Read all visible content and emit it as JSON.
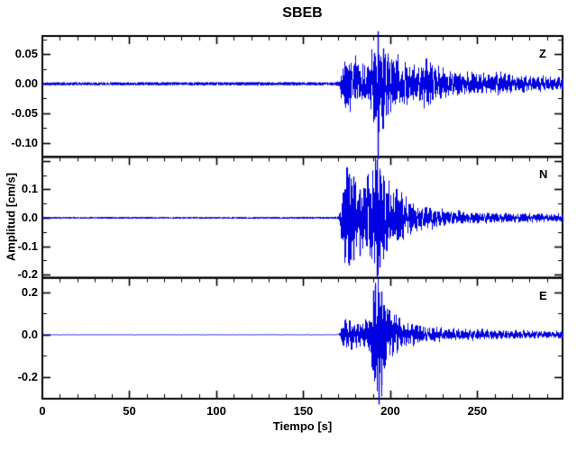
{
  "chart_data": {
    "type": "line",
    "title": "SBEB",
    "xlabel": "Tiempo [s]",
    "ylabel": "Amplitud [cm/s]",
    "background_color": "#ffffff",
    "axis_color": "#000000",
    "trace_color": "#0000e0",
    "grid": false,
    "legend": "none",
    "xlim": [
      0,
      299
    ],
    "xticks": {
      "major_step": 50,
      "minor_step": 10,
      "labels": [
        {
          "t": 0,
          "label": "0"
        },
        {
          "t": 50,
          "label": "50"
        },
        {
          "t": 100,
          "label": "100"
        },
        {
          "t": 150,
          "label": "150"
        },
        {
          "t": 200,
          "label": "200"
        },
        {
          "t": 250,
          "label": "250"
        }
      ]
    },
    "event_onset_s": 171.2,
    "panels": [
      {
        "label": "Z",
        "seed": 11,
        "ylim": [
          -0.124,
          0.081
        ],
        "ytick_major_step": 0.05,
        "ytick_minor_step": 0.025,
        "yticks": [
          {
            "v": 0.05,
            "label": "0.05"
          },
          {
            "v": 0.0,
            "label": "0.00"
          },
          {
            "v": -0.05,
            "label": "-0.05"
          },
          {
            "v": -0.1,
            "label": "-0.10"
          }
        ],
        "envelope": [
          [
            0,
            0.0038
          ],
          [
            150,
            0.0042
          ],
          [
            168,
            0.004
          ],
          [
            170.5,
            0.006
          ],
          [
            171.5,
            0.018
          ],
          [
            172.5,
            0.03
          ],
          [
            174,
            0.034
          ],
          [
            176,
            0.038
          ],
          [
            178,
            0.03
          ],
          [
            180,
            0.033
          ],
          [
            182,
            0.028
          ],
          [
            184,
            0.031
          ],
          [
            186,
            0.033
          ],
          [
            188,
            0.042
          ],
          [
            190,
            0.05
          ],
          [
            192,
            0.058
          ],
          [
            193,
            0.062
          ],
          [
            194,
            0.05
          ],
          [
            195.5,
            0.055
          ],
          [
            197,
            0.046
          ],
          [
            199,
            0.04
          ],
          [
            201,
            0.036
          ],
          [
            203,
            0.04
          ],
          [
            206,
            0.037
          ],
          [
            209,
            0.032
          ],
          [
            212,
            0.028
          ],
          [
            215,
            0.032
          ],
          [
            218,
            0.03
          ],
          [
            221,
            0.042
          ],
          [
            223,
            0.045
          ],
          [
            225,
            0.034
          ],
          [
            228,
            0.026
          ],
          [
            231,
            0.022
          ],
          [
            234,
            0.019
          ],
          [
            237,
            0.022
          ],
          [
            240,
            0.02
          ],
          [
            244,
            0.017
          ],
          [
            248,
            0.02
          ],
          [
            252,
            0.016
          ],
          [
            256,
            0.014
          ],
          [
            260,
            0.018
          ],
          [
            264,
            0.021
          ],
          [
            268,
            0.016
          ],
          [
            272,
            0.012
          ],
          [
            276,
            0.014
          ],
          [
            280,
            0.013
          ],
          [
            284,
            0.011
          ],
          [
            288,
            0.013
          ],
          [
            293,
            0.011
          ],
          [
            299,
            0.012
          ]
        ],
        "spikes": [
          {
            "t": 192.9,
            "up": 0.089,
            "down": -0.128
          },
          {
            "t": 190.7,
            "up": 0.052,
            "down": -0.06
          },
          {
            "t": 195.9,
            "up": 0.06,
            "down": -0.048
          },
          {
            "t": 198.3,
            "up": 0.045,
            "down": -0.052
          }
        ]
      },
      {
        "label": "N",
        "seed": 23,
        "ylim": [
          -0.2114,
          0.2146
        ],
        "ytick_major_step": 0.1,
        "ytick_minor_step": 0.05,
        "yticks": [
          {
            "v": 0.1,
            "label": "0.1"
          },
          {
            "v": 0.0,
            "label": "0.0"
          },
          {
            "v": -0.1,
            "label": "-0.1"
          },
          {
            "v": -0.2,
            "label": "-0.2"
          }
        ],
        "envelope": [
          [
            0,
            0.0045
          ],
          [
            150,
            0.005
          ],
          [
            168,
            0.005
          ],
          [
            170.5,
            0.008
          ],
          [
            171.5,
            0.05
          ],
          [
            172.5,
            0.1
          ],
          [
            174,
            0.125
          ],
          [
            175.5,
            0.145
          ],
          [
            177,
            0.155
          ],
          [
            178.5,
            0.125
          ],
          [
            180,
            0.095
          ],
          [
            182,
            0.075
          ],
          [
            184,
            0.08
          ],
          [
            186,
            0.09
          ],
          [
            188,
            0.115
          ],
          [
            190,
            0.15
          ],
          [
            191.5,
            0.19
          ],
          [
            193,
            0.165
          ],
          [
            194.5,
            0.125
          ],
          [
            196,
            0.14
          ],
          [
            197.5,
            0.11
          ],
          [
            199,
            0.09
          ],
          [
            201,
            0.085
          ],
          [
            203,
            0.08
          ],
          [
            205,
            0.07
          ],
          [
            208,
            0.06
          ],
          [
            211,
            0.05
          ],
          [
            214,
            0.045
          ],
          [
            217,
            0.048
          ],
          [
            220,
            0.04
          ],
          [
            224,
            0.035
          ],
          [
            228,
            0.03
          ],
          [
            232,
            0.027
          ],
          [
            236,
            0.024
          ],
          [
            240,
            0.022
          ],
          [
            244,
            0.02
          ],
          [
            248,
            0.022
          ],
          [
            252,
            0.018
          ],
          [
            256,
            0.02
          ],
          [
            260,
            0.019
          ],
          [
            264,
            0.017
          ],
          [
            268,
            0.018
          ],
          [
            272,
            0.015
          ],
          [
            276,
            0.017
          ],
          [
            280,
            0.014
          ],
          [
            284,
            0.016
          ],
          [
            288,
            0.013
          ],
          [
            293,
            0.015
          ],
          [
            299,
            0.014
          ]
        ],
        "spikes": [
          {
            "t": 192.1,
            "up": 0.205,
            "down": -0.208
          },
          {
            "t": 176.4,
            "up": 0.155,
            "down": -0.168
          },
          {
            "t": 178.7,
            "up": 0.145,
            "down": -0.15
          },
          {
            "t": 193.9,
            "up": 0.165,
            "down": -0.175
          },
          {
            "t": 182.5,
            "up": 0.1,
            "down": -0.135
          }
        ]
      },
      {
        "label": "E",
        "seed": 37,
        "ylim": [
          -0.3047,
          0.2704
        ],
        "ytick_major_step": 0.2,
        "ytick_minor_step": 0.1,
        "yticks": [
          {
            "v": 0.2,
            "label": "0.2"
          },
          {
            "v": 0.0,
            "label": "0.0"
          },
          {
            "v": -0.2,
            "label": "-0.2"
          }
        ],
        "envelope": [
          [
            0,
            0.002
          ],
          [
            150,
            0.0022
          ],
          [
            168,
            0.002
          ],
          [
            170.5,
            0.004
          ],
          [
            171.5,
            0.03
          ],
          [
            172.5,
            0.055
          ],
          [
            174,
            0.06
          ],
          [
            176,
            0.055
          ],
          [
            178,
            0.05
          ],
          [
            180,
            0.046
          ],
          [
            182,
            0.05
          ],
          [
            184,
            0.047
          ],
          [
            186,
            0.055
          ],
          [
            188,
            0.09
          ],
          [
            189.5,
            0.15
          ],
          [
            191,
            0.21
          ],
          [
            192.5,
            0.23
          ],
          [
            194,
            0.22
          ],
          [
            195.5,
            0.19
          ],
          [
            197,
            0.14
          ],
          [
            198.5,
            0.11
          ],
          [
            200,
            0.09
          ],
          [
            202,
            0.075
          ],
          [
            204,
            0.065
          ],
          [
            206,
            0.058
          ],
          [
            209,
            0.05
          ],
          [
            212,
            0.045
          ],
          [
            215,
            0.04
          ],
          [
            218,
            0.037
          ],
          [
            221,
            0.034
          ],
          [
            224,
            0.031
          ],
          [
            227,
            0.034
          ],
          [
            230,
            0.031
          ],
          [
            234,
            0.028
          ],
          [
            238,
            0.025
          ],
          [
            242,
            0.027
          ],
          [
            246,
            0.024
          ],
          [
            250,
            0.026
          ],
          [
            254,
            0.022
          ],
          [
            258,
            0.024
          ],
          [
            262,
            0.02
          ],
          [
            266,
            0.022
          ],
          [
            270,
            0.019
          ],
          [
            274,
            0.021
          ],
          [
            278,
            0.018
          ],
          [
            282,
            0.02
          ],
          [
            286,
            0.017
          ],
          [
            290,
            0.019
          ],
          [
            294,
            0.016
          ],
          [
            299,
            0.018
          ]
        ],
        "spikes": [
          {
            "t": 193.4,
            "up": 0.2,
            "down": -0.332
          },
          {
            "t": 191.3,
            "up": 0.235,
            "down": -0.2
          },
          {
            "t": 194.9,
            "up": 0.205,
            "down": -0.24
          },
          {
            "t": 190.2,
            "up": 0.21,
            "down": -0.17
          }
        ]
      }
    ]
  }
}
